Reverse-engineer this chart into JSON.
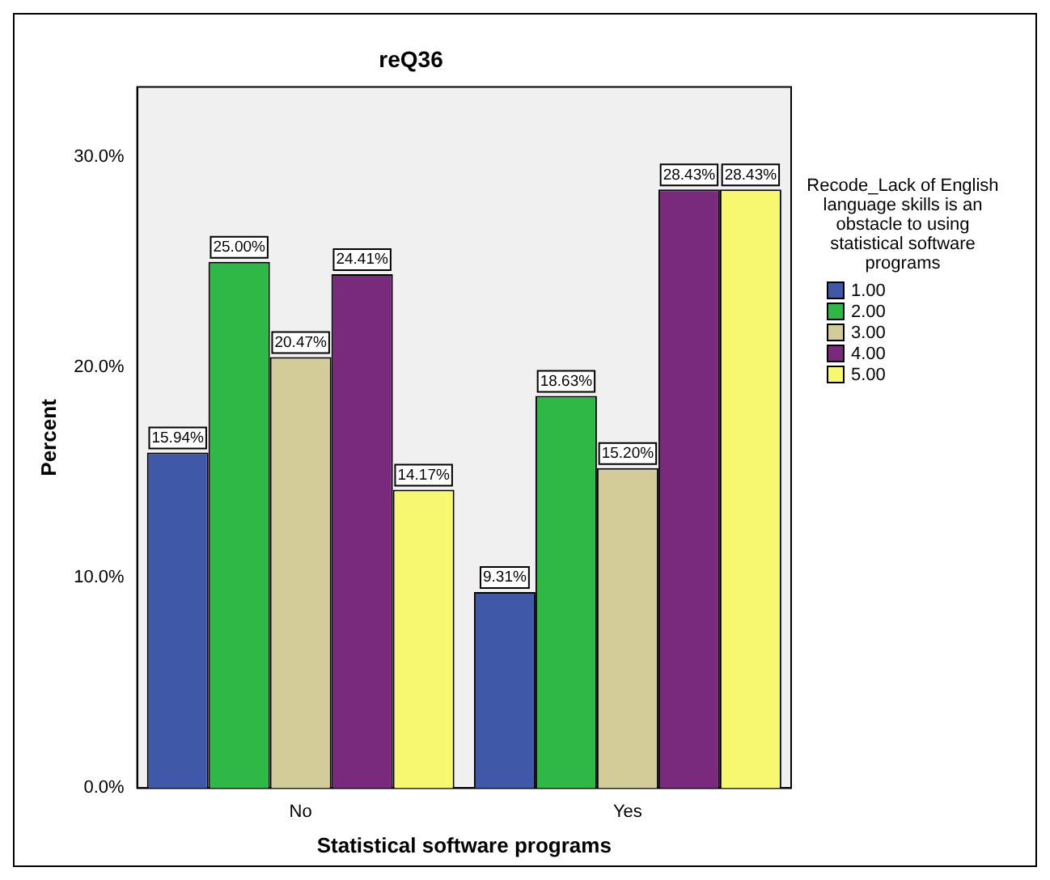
{
  "chart_data": {
    "type": "bar",
    "title": "reQ36",
    "xlabel": "Statistical software programs",
    "ylabel": "Percent",
    "legend_title": "Recode_Lack of English language skills is an obstacle to using statistical software programs",
    "legend": "right",
    "categories": [
      "No",
      "Yes"
    ],
    "series": [
      {
        "name": "1.00",
        "color": "#3f58a8",
        "values": [
          15.94,
          9.31
        ],
        "value_labels": [
          "15.94%",
          "9.31%"
        ]
      },
      {
        "name": "2.00",
        "color": "#2fb845",
        "values": [
          25.0,
          18.63
        ],
        "value_labels": [
          "25.00%",
          "18.63%"
        ]
      },
      {
        "name": "3.00",
        "color": "#d4cc98",
        "values": [
          20.47,
          15.2
        ],
        "value_labels": [
          "20.47%",
          "15.20%"
        ]
      },
      {
        "name": "4.00",
        "color": "#7a2a7c",
        "values": [
          24.41,
          28.43
        ],
        "value_labels": [
          "24.41%",
          "28.43%"
        ]
      },
      {
        "name": "5.00",
        "color": "#f8f870",
        "values": [
          14.17,
          28.43
        ],
        "value_labels": [
          "14.17%",
          "28.43%"
        ]
      }
    ],
    "ylim": [
      0,
      33.3
    ],
    "yticks": [
      {
        "value": 0,
        "label": "0.0%"
      },
      {
        "value": 10,
        "label": "10.0%"
      },
      {
        "value": 20,
        "label": "20.0%"
      },
      {
        "value": 30,
        "label": "30.0%"
      }
    ],
    "grid": false
  }
}
